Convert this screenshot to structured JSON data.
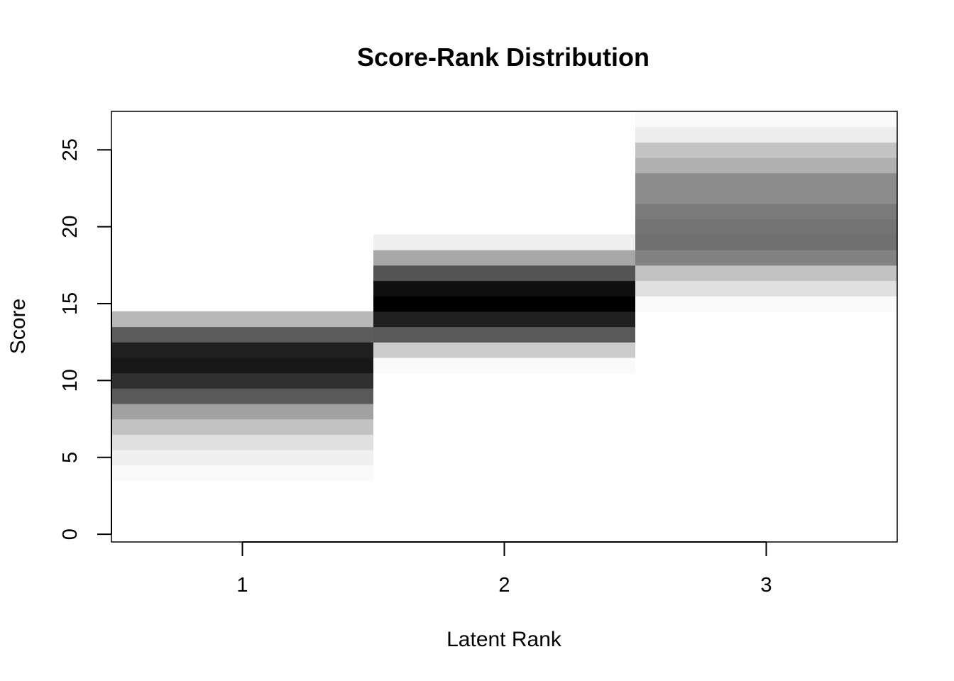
{
  "chart_data": {
    "type": "heatmap",
    "title": "Score-Rank Distribution",
    "xlabel": "Latent Rank",
    "ylabel": "Score",
    "x_ticks": [
      "1",
      "2",
      "3"
    ],
    "y_ticks": [
      "0",
      "5",
      "10",
      "15",
      "20",
      "25"
    ],
    "xlim": [
      0.5,
      3.5
    ],
    "ylim": [
      -0.5,
      27.5
    ],
    "grid": false,
    "legend": "none",
    "colors": {
      "low": "#ffffff",
      "high": "#000000"
    },
    "cells": [
      {
        "rank": 1,
        "score": 4,
        "intensity": 0.02
      },
      {
        "rank": 1,
        "score": 5,
        "intensity": 0.06
      },
      {
        "rank": 1,
        "score": 6,
        "intensity": 0.12
      },
      {
        "rank": 1,
        "score": 7,
        "intensity": 0.24
      },
      {
        "rank": 1,
        "score": 8,
        "intensity": 0.37
      },
      {
        "rank": 1,
        "score": 9,
        "intensity": 0.65
      },
      {
        "rank": 1,
        "score": 10,
        "intensity": 0.81
      },
      {
        "rank": 1,
        "score": 11,
        "intensity": 0.91
      },
      {
        "rank": 1,
        "score": 12,
        "intensity": 0.88
      },
      {
        "rank": 1,
        "score": 13,
        "intensity": 0.64
      },
      {
        "rank": 1,
        "score": 14,
        "intensity": 0.28
      },
      {
        "rank": 2,
        "score": 11,
        "intensity": 0.02
      },
      {
        "rank": 2,
        "score": 12,
        "intensity": 0.2
      },
      {
        "rank": 2,
        "score": 13,
        "intensity": 0.65
      },
      {
        "rank": 2,
        "score": 14,
        "intensity": 0.88
      },
      {
        "rank": 2,
        "score": 15,
        "intensity": 1.0
      },
      {
        "rank": 2,
        "score": 16,
        "intensity": 0.94
      },
      {
        "rank": 2,
        "score": 17,
        "intensity": 0.67
      },
      {
        "rank": 2,
        "score": 18,
        "intensity": 0.34
      },
      {
        "rank": 2,
        "score": 19,
        "intensity": 0.06
      },
      {
        "rank": 3,
        "score": 15,
        "intensity": 0.02
      },
      {
        "rank": 3,
        "score": 16,
        "intensity": 0.12
      },
      {
        "rank": 3,
        "score": 17,
        "intensity": 0.24
      },
      {
        "rank": 3,
        "score": 18,
        "intensity": 0.49
      },
      {
        "rank": 3,
        "score": 19,
        "intensity": 0.56
      },
      {
        "rank": 3,
        "score": 20,
        "intensity": 0.55
      },
      {
        "rank": 3,
        "score": 21,
        "intensity": 0.52
      },
      {
        "rank": 3,
        "score": 22,
        "intensity": 0.45
      },
      {
        "rank": 3,
        "score": 23,
        "intensity": 0.45
      },
      {
        "rank": 3,
        "score": 24,
        "intensity": 0.31
      },
      {
        "rank": 3,
        "score": 25,
        "intensity": 0.23
      },
      {
        "rank": 3,
        "score": 26,
        "intensity": 0.07
      },
      {
        "rank": 3,
        "score": 27,
        "intensity": 0.02
      }
    ]
  }
}
